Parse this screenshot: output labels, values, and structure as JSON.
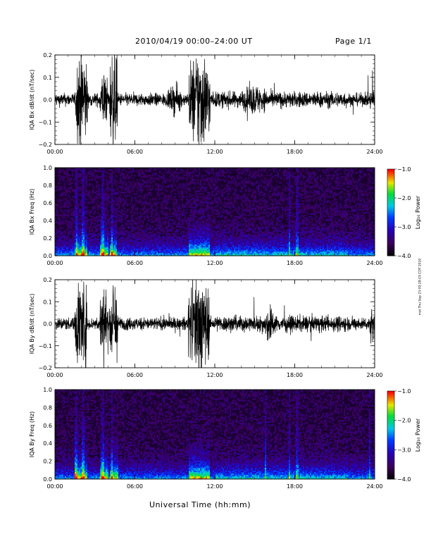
{
  "header": {
    "title": "2010/04/19   00:00–24:00 UT",
    "page": "Page 1/1"
  },
  "footer": {
    "xlabel": "Universal Time (hh:mm)",
    "stamp": "mst Thu Sep 23 09:28:03 CDT 2010"
  },
  "chart_data": [
    {
      "type": "line",
      "panel": "time-series",
      "ylabel": "IQA Bx dB/dt (nT/sec)",
      "xlim": [
        0,
        24
      ],
      "ylim": [
        -0.2,
        0.2
      ],
      "xticks": [
        "00:00",
        "06:00",
        "12:00",
        "18:00",
        "24:00"
      ],
      "yticks": [
        "−0.2",
        "−0.1",
        "0.0",
        "0.1",
        "0.2"
      ],
      "x_unit": "hours UT",
      "noise_amplitude": 0.025,
      "bursts": [
        {
          "start": 1.55,
          "end": 2.45,
          "amplitude": 0.22
        },
        {
          "start": 3.35,
          "end": 4.0,
          "amplitude": 0.12
        },
        {
          "start": 4.1,
          "end": 4.7,
          "amplitude": 0.22
        },
        {
          "start": 10.05,
          "end": 11.65,
          "amplitude": 0.22
        },
        {
          "start": 8.5,
          "end": 9.5,
          "amplitude": 0.06
        },
        {
          "start": 14.0,
          "end": 16.0,
          "amplitude": 0.05
        },
        {
          "start": 23.6,
          "end": 24.0,
          "amplitude": 0.05
        }
      ]
    },
    {
      "type": "heatmap",
      "panel": "spectrogram",
      "ylabel": "IQA Bx Freq (Hz)",
      "xlim": [
        0,
        24
      ],
      "ylim": [
        0,
        1.0
      ],
      "xticks": [
        "00:00",
        "06:00",
        "12:00",
        "18:00",
        "24:00"
      ],
      "yticks": [
        "0.0",
        "0.2",
        "0.4",
        "0.6",
        "0.8",
        "1.0"
      ],
      "colorbar": {
        "label": "Log₁₀ Power",
        "range": [
          -4.0,
          -1.0
        ],
        "ticks": [
          "−1.0",
          "−2.0",
          "−3.0",
          "−4.0"
        ]
      },
      "bursts": [
        {
          "start": 1.55,
          "end": 2.45
        },
        {
          "start": 3.35,
          "end": 4.0
        },
        {
          "start": 4.1,
          "end": 4.7
        },
        {
          "start": 10.05,
          "end": 11.65
        }
      ],
      "vertical_lines_hours": [
        1.6,
        2.1,
        3.6,
        4.3,
        17.6,
        18.2
      ]
    },
    {
      "type": "line",
      "panel": "time-series",
      "ylabel": "IQA By dB/dt (nT/sec)",
      "xlim": [
        0,
        24
      ],
      "ylim": [
        -0.2,
        0.2
      ],
      "xticks": [
        "00:00",
        "06:00",
        "12:00",
        "18:00",
        "24:00"
      ],
      "yticks": [
        "−0.2",
        "−0.1",
        "0.0",
        "0.1",
        "0.2"
      ],
      "x_unit": "hours UT",
      "noise_amplitude": 0.025,
      "bursts": [
        {
          "start": 1.5,
          "end": 2.4,
          "amplitude": 0.22
        },
        {
          "start": 3.35,
          "end": 4.0,
          "amplitude": 0.16
        },
        {
          "start": 4.1,
          "end": 4.75,
          "amplitude": 0.2
        },
        {
          "start": 10.0,
          "end": 11.6,
          "amplitude": 0.22
        },
        {
          "start": 15.8,
          "end": 16.4,
          "amplitude": 0.07
        },
        {
          "start": 23.6,
          "end": 24.0,
          "amplitude": 0.08
        }
      ]
    },
    {
      "type": "heatmap",
      "panel": "spectrogram",
      "ylabel": "IQA By Freq (Hz)",
      "xlim": [
        0,
        24
      ],
      "ylim": [
        0,
        1.0
      ],
      "xticks": [
        "00:00",
        "06:00",
        "12:00",
        "18:00",
        "24:00"
      ],
      "yticks": [
        "0.0",
        "0.2",
        "0.4",
        "0.6",
        "0.8",
        "1.0"
      ],
      "colorbar": {
        "label": "Log₁₀ Power",
        "range": [
          -4.0,
          -1.0
        ],
        "ticks": [
          "−1.0",
          "−2.0",
          "−3.0",
          "−4.0"
        ]
      },
      "bursts": [
        {
          "start": 1.5,
          "end": 2.4
        },
        {
          "start": 3.35,
          "end": 4.0
        },
        {
          "start": 4.1,
          "end": 4.75
        },
        {
          "start": 10.0,
          "end": 11.6
        }
      ],
      "vertical_lines_hours": [
        1.6,
        2.1,
        3.6,
        4.3,
        15.8,
        17.6,
        18.2,
        23.6
      ]
    }
  ]
}
